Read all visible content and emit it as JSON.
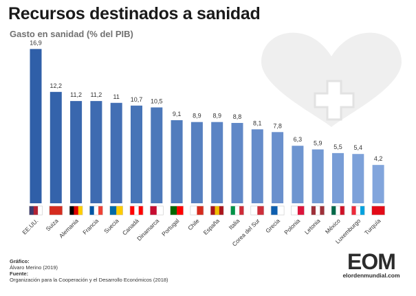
{
  "header": {
    "title": "Recursos destinados a sanidad",
    "subtitle": "Gasto en sanidad (% del PIB)"
  },
  "footer": {
    "grafico_label": "Gráfico:",
    "grafico_value": "Álvaro Merino (2019)",
    "fuente_label": "Fuente:",
    "fuente_value": "Organización para la Cooperación y el Desarrollo Económicos (2018)"
  },
  "logo": {
    "mark": "EOM",
    "site": "elordenmundial.com"
  },
  "icons": [
    "heart-cross-icon",
    "flag-icon"
  ],
  "colors": {
    "bar_top": "#2f5fa8",
    "bar_fade": "#a8c2e8",
    "background_heart": "#efefef"
  },
  "chart_data": {
    "type": "bar",
    "title": "Recursos destinados a sanidad",
    "subtitle": "Gasto en sanidad (% del PIB)",
    "xlabel": "",
    "ylabel": "",
    "ylim": [
      0,
      17
    ],
    "grid": false,
    "categories": [
      "EE.UU.",
      "Suiza",
      "Alemania",
      "Francia",
      "Suecia",
      "Canadá",
      "Dinamarca",
      "Portugal",
      "Chile",
      "España",
      "Italia",
      "Corea del Sur",
      "Grecia",
      "Polonia",
      "Letonia",
      "México",
      "Luxemburgo",
      "Turquía"
    ],
    "values": [
      16.9,
      12.2,
      11.2,
      11.2,
      11,
      10.7,
      10.5,
      9.1,
      8.9,
      8.9,
      8.8,
      8.1,
      7.8,
      6.3,
      5.9,
      5.5,
      5.4,
      4.2
    ],
    "value_labels": [
      "16,9",
      "12,2",
      "11,2",
      "11,2",
      "11",
      "10,7",
      "10,5",
      "9,1",
      "8,9",
      "8,9",
      "8,8",
      "8,1",
      "7,8",
      "6,3",
      "5,9",
      "5,5",
      "5,4",
      "4,2"
    ]
  }
}
